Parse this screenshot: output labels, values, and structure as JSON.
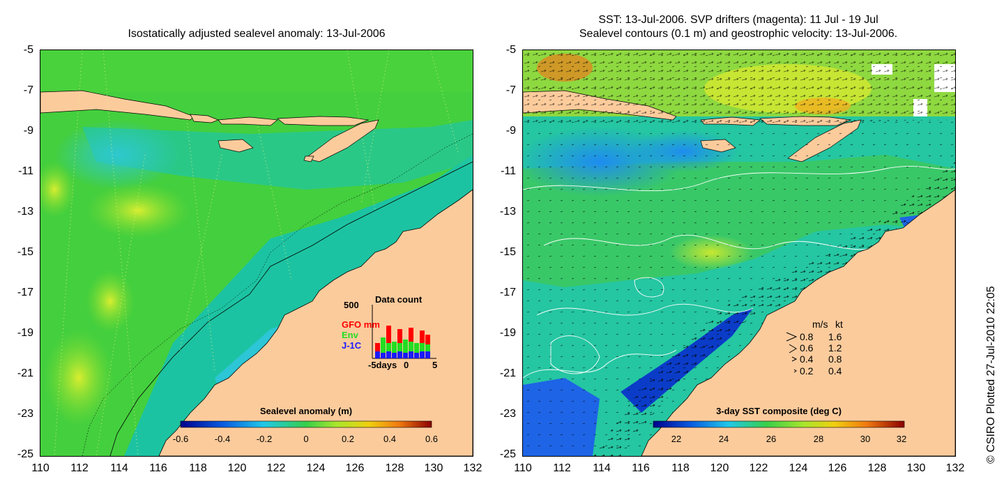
{
  "left_panel": {
    "title": "Isostatically adjusted sealevel anomaly: 13-Jul-2006",
    "colorbar": {
      "label": "Sealevel anomaly (m)",
      "ticks": [
        "-0.6",
        "-0.4",
        "-0.2",
        "0",
        "0.2",
        "0.4",
        "0.6"
      ]
    },
    "inset": {
      "title": "Data count",
      "ymax": "500",
      "legend": [
        {
          "label": "GFO mm",
          "color": "#ff0000"
        },
        {
          "label": "Env",
          "color": "#22dd22"
        },
        {
          "label": "J-1C",
          "color": "#1a1aff"
        }
      ],
      "xlabel_left": "-5days",
      "xlabel_mid": "0",
      "xlabel_right": "5"
    }
  },
  "right_panel": {
    "title_line1": "SST: 13-Jul-2006. SVP drifters (magenta): 11 Jul - 19 Jul",
    "title_line2": "Sealevel contours (0.1 m) and geostrophic velocity: 13-Jul-2006.",
    "colorbar": {
      "label": "3-day SST composite (deg C)",
      "ticks": [
        "22",
        "24",
        "26",
        "28",
        "30",
        "32"
      ]
    },
    "velocity_legend": {
      "header_ms": "m/s",
      "header_kt": "kt",
      "rows": [
        {
          "ms": "0.8",
          "kt": "1.6"
        },
        {
          "ms": "0.6",
          "kt": "1.2"
        },
        {
          "ms": "0.4",
          "kt": "0.8"
        },
        {
          "ms": "0.2",
          "kt": "0.4"
        }
      ]
    }
  },
  "axes": {
    "y_ticks": [
      "-5",
      "-7",
      "-9",
      "-11",
      "-13",
      "-15",
      "-17",
      "-19",
      "-21",
      "-23",
      "-25"
    ],
    "x_ticks": [
      "110",
      "112",
      "114",
      "116",
      "118",
      "120",
      "122",
      "124",
      "126",
      "128",
      "130",
      "132"
    ]
  },
  "copyright": "© CSIRO Plotted 27-Jul-2010 22:05",
  "colors": {
    "land": "#fccb9c",
    "sea_green": "#3fcd3a",
    "sea_teal": "#1cc3a2",
    "sea_cyan": "#2cc6d6",
    "sst_blue": "#1e64e6"
  }
}
